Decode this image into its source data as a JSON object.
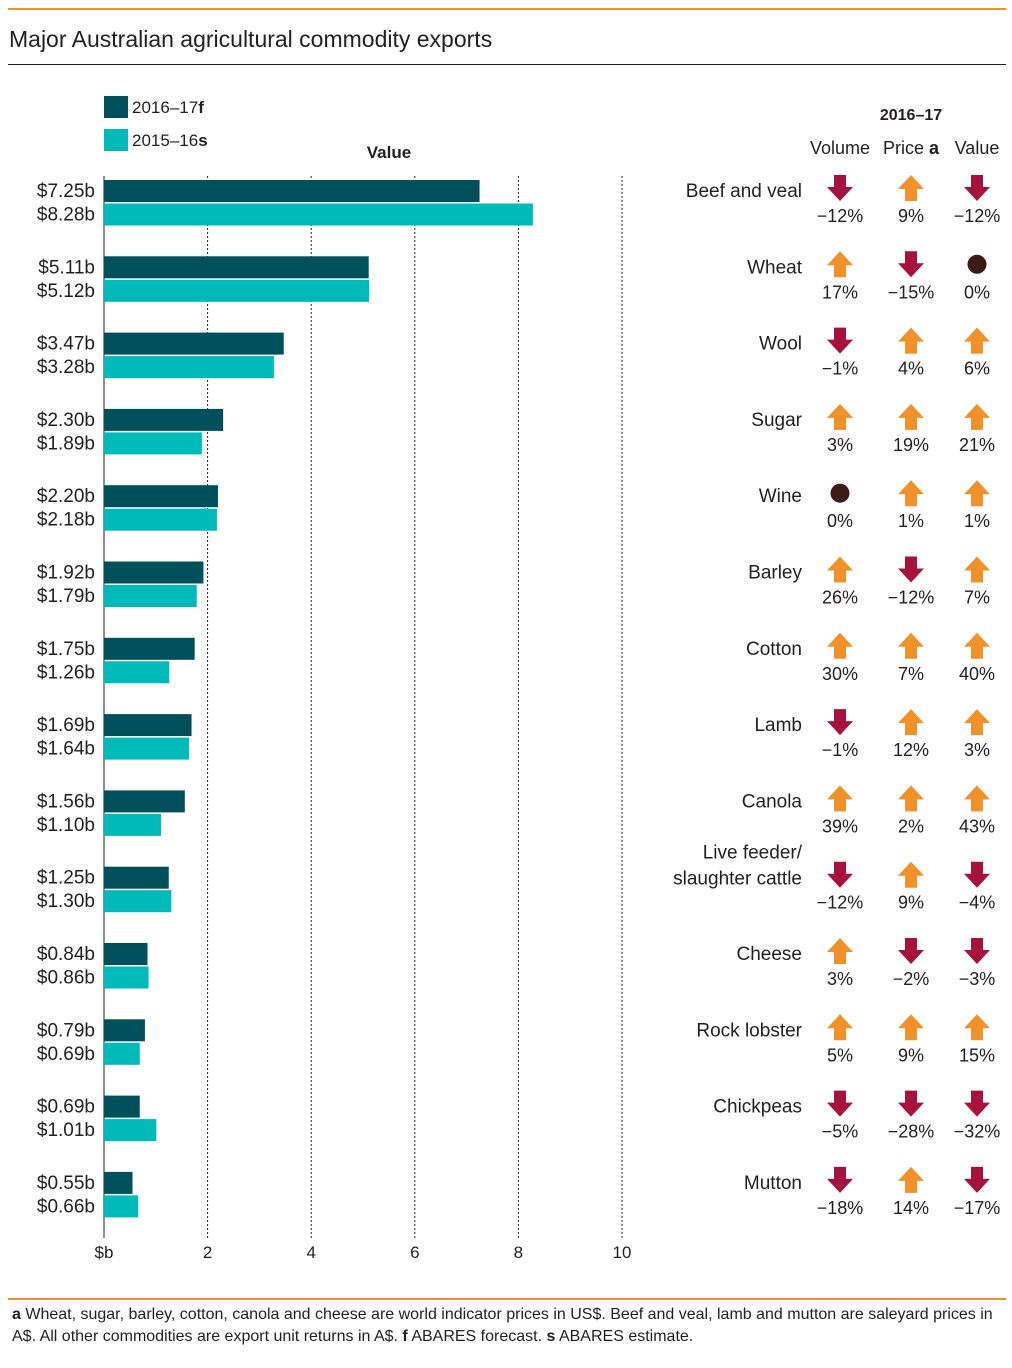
{
  "title": "Major Australian agricultural commodity exports",
  "footnote": [
    {
      "marker": "a",
      "text": " Wheat, sugar, barley, cotton, canola and cheese are world indicator prices in US$. Beef and veal, lamb and mutton are saleyard prices in A$. All other commodities are export unit returns in A$. "
    },
    {
      "marker": "f",
      "text": " ABARES forecast. "
    },
    {
      "marker": "s",
      "text": " ABARES estimate."
    }
  ],
  "colors": {
    "forecast": "#00505c",
    "estimate": "#00b9b9",
    "up": "#f0912a",
    "down": "#a6123c",
    "flat": "#3b1b13"
  },
  "chart_data": {
    "type": "bar",
    "orientation": "horizontal",
    "title": "Value",
    "xlabel": "",
    "ylabel": "",
    "xlim": [
      0,
      10
    ],
    "xticks": [
      "$b",
      "2",
      "4",
      "6",
      "8",
      "10"
    ],
    "grid": true,
    "legend": [
      {
        "name": "2016–17",
        "suffix": "f"
      },
      {
        "name": "2015–16",
        "suffix": "s"
      }
    ],
    "categories": [
      "Beef and veal",
      "Wheat",
      "Wool",
      "Sugar",
      "Wine",
      "Barley",
      "Cotton",
      "Lamb",
      "Canola",
      "Live feeder/ slaughter cattle",
      "Cheese",
      "Rock lobster",
      "Chickpeas",
      "Mutton"
    ],
    "series": [
      {
        "name": "2016–17f",
        "values": [
          7.25,
          5.11,
          3.47,
          2.3,
          2.2,
          1.92,
          1.75,
          1.69,
          1.56,
          1.25,
          0.84,
          0.79,
          0.69,
          0.55
        ],
        "labels": [
          "$7.25b",
          "$5.11b",
          "$3.47b",
          "$2.30b",
          "$2.20b",
          "$1.92b",
          "$1.75b",
          "$1.69b",
          "$1.56b",
          "$1.25b",
          "$0.84b",
          "$0.79b",
          "$0.69b",
          "$0.55b"
        ]
      },
      {
        "name": "2015–16s",
        "values": [
          8.28,
          5.12,
          3.28,
          1.89,
          2.18,
          1.79,
          1.26,
          1.64,
          1.1,
          1.3,
          0.86,
          0.69,
          1.01,
          0.66
        ],
        "labels": [
          "$8.28b",
          "$5.12b",
          "$3.28b",
          "$1.89b",
          "$2.18b",
          "$1.79b",
          "$1.26b",
          "$1.64b",
          "$1.10b",
          "$1.30b",
          "$0.86b",
          "$0.69b",
          "$1.01b",
          "$0.66b"
        ]
      }
    ],
    "changes_table": {
      "period": "2016–17",
      "columns": [
        {
          "label": "Volume",
          "suffix": ""
        },
        {
          "label": "Price",
          "suffix": "a"
        },
        {
          "label": "Value",
          "suffix": ""
        }
      ],
      "rows": [
        {
          "name": [
            "Beef and veal"
          ],
          "changes": [
            "−12%",
            "9%",
            "−12%"
          ],
          "directions": [
            "down",
            "up",
            "down"
          ]
        },
        {
          "name": [
            "Wheat"
          ],
          "changes": [
            "17%",
            "−15%",
            "0%"
          ],
          "directions": [
            "up",
            "down",
            "flat"
          ]
        },
        {
          "name": [
            "Wool"
          ],
          "changes": [
            "−1%",
            "4%",
            "6%"
          ],
          "directions": [
            "down",
            "up",
            "up"
          ]
        },
        {
          "name": [
            "Sugar"
          ],
          "changes": [
            "3%",
            "19%",
            "21%"
          ],
          "directions": [
            "up",
            "up",
            "up"
          ]
        },
        {
          "name": [
            "Wine"
          ],
          "changes": [
            "0%",
            "1%",
            "1%"
          ],
          "directions": [
            "flat",
            "up",
            "up"
          ]
        },
        {
          "name": [
            "Barley"
          ],
          "changes": [
            "26%",
            "−12%",
            "7%"
          ],
          "directions": [
            "up",
            "down",
            "up"
          ]
        },
        {
          "name": [
            "Cotton"
          ],
          "changes": [
            "30%",
            "7%",
            "40%"
          ],
          "directions": [
            "up",
            "up",
            "up"
          ]
        },
        {
          "name": [
            "Lamb"
          ],
          "changes": [
            "−1%",
            "12%",
            "3%"
          ],
          "directions": [
            "down",
            "up",
            "up"
          ]
        },
        {
          "name": [
            "Canola"
          ],
          "changes": [
            "39%",
            "2%",
            "43%"
          ],
          "directions": [
            "up",
            "up",
            "up"
          ]
        },
        {
          "name": [
            "Live feeder/",
            "slaughter cattle"
          ],
          "changes": [
            "−12%",
            "9%",
            "−4%"
          ],
          "directions": [
            "down",
            "up",
            "down"
          ]
        },
        {
          "name": [
            "Cheese"
          ],
          "changes": [
            "3%",
            "−2%",
            "−3%"
          ],
          "directions": [
            "up",
            "down",
            "down"
          ]
        },
        {
          "name": [
            "Rock lobster"
          ],
          "changes": [
            "5%",
            "9%",
            "15%"
          ],
          "directions": [
            "up",
            "up",
            "up"
          ]
        },
        {
          "name": [
            "Chickpeas"
          ],
          "changes": [
            "−5%",
            "−28%",
            "−32%"
          ],
          "directions": [
            "down",
            "down",
            "down"
          ]
        },
        {
          "name": [
            "Mutton"
          ],
          "changes": [
            "−18%",
            "14%",
            "−17%"
          ],
          "directions": [
            "down",
            "up",
            "down"
          ]
        }
      ]
    }
  }
}
